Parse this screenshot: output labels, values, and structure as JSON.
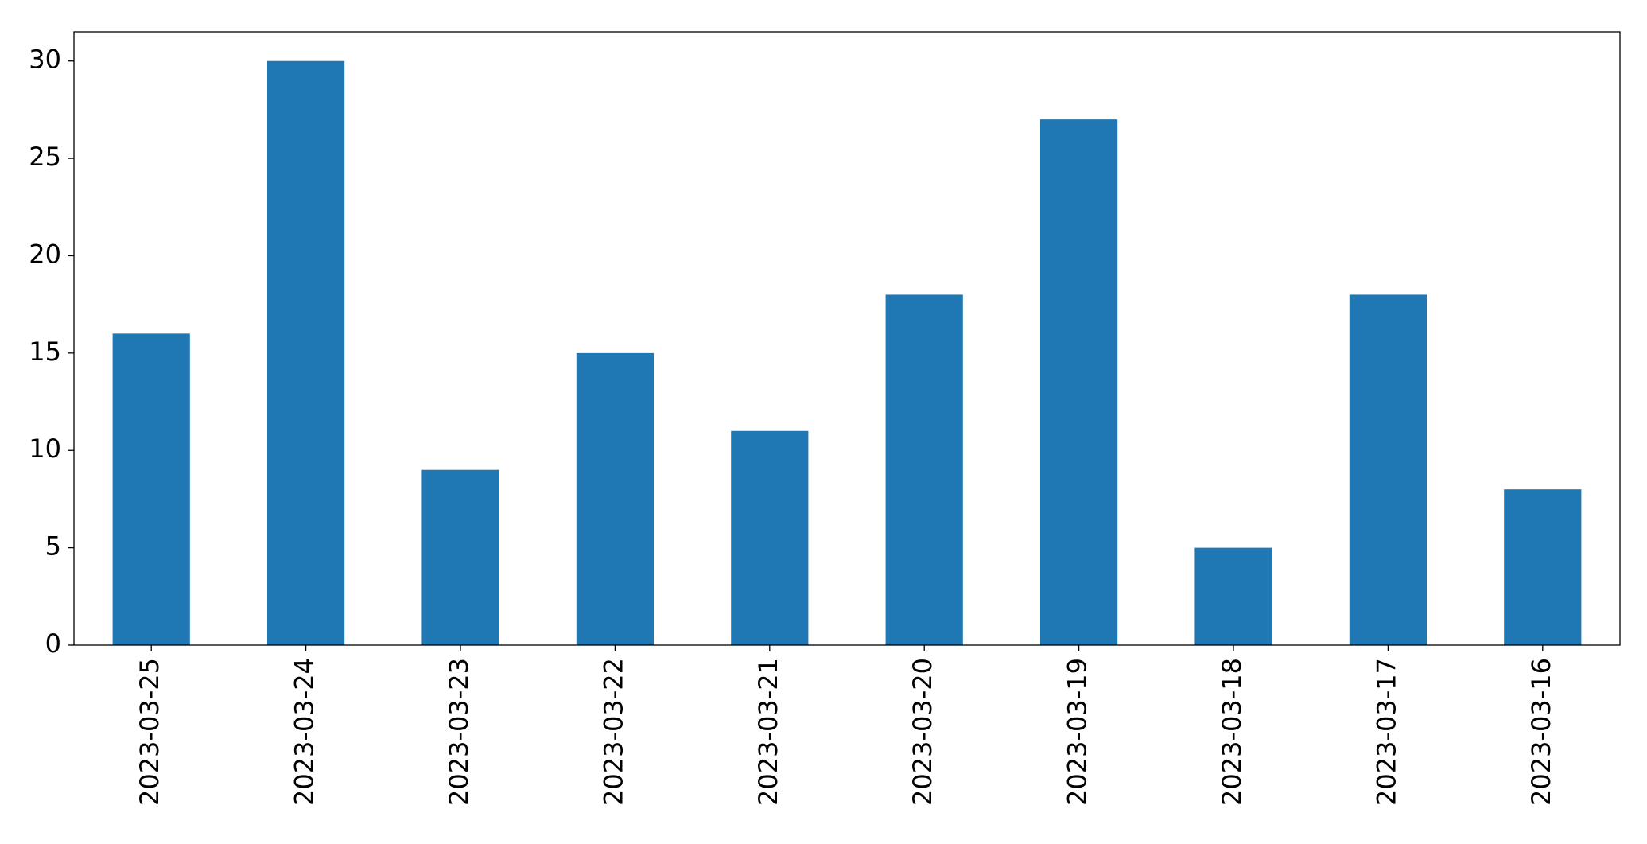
{
  "chart_data": {
    "type": "bar",
    "categories": [
      "2023-03-25",
      "2023-03-24",
      "2023-03-23",
      "2023-03-22",
      "2023-03-21",
      "2023-03-20",
      "2023-03-19",
      "2023-03-18",
      "2023-03-17",
      "2023-03-16"
    ],
    "values": [
      16,
      30,
      9,
      15,
      11,
      18,
      27,
      5,
      18,
      8
    ],
    "color": "#1f77b4",
    "ylim": [
      0,
      31.5
    ],
    "yticks": [
      0,
      5,
      10,
      15,
      20,
      25,
      30
    ],
    "grid": false
  }
}
